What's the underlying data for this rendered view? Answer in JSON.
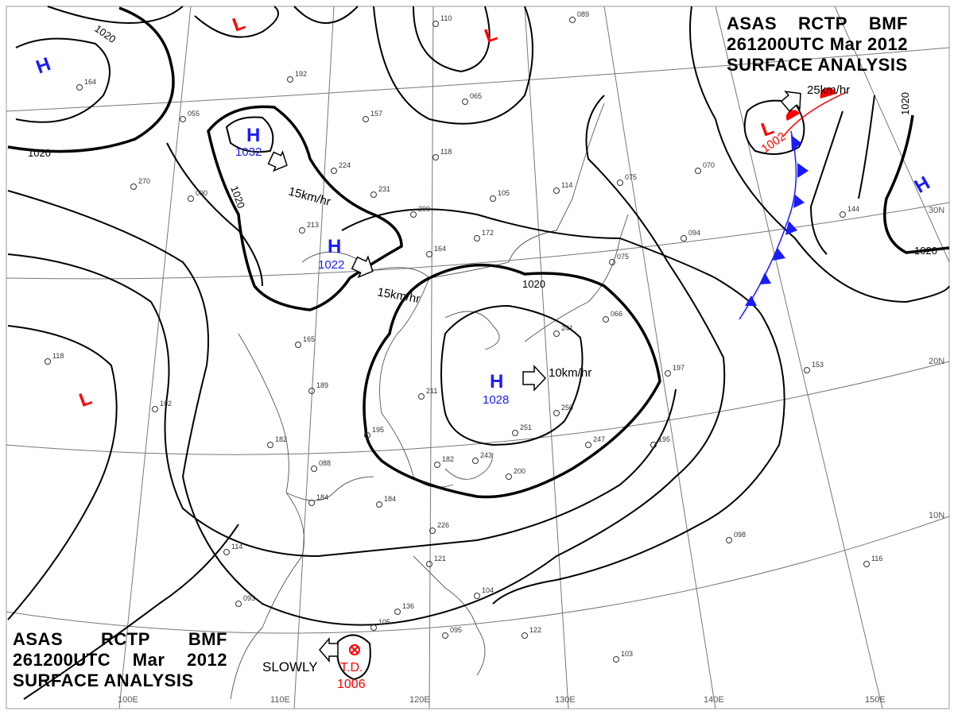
{
  "header": {
    "line1": [
      "ASAS",
      "RCTP",
      "BMF"
    ],
    "line2": [
      "261200UTC",
      "Mar",
      "2012"
    ],
    "line3": "SURFACE ANALYSIS"
  },
  "colors": {
    "high": "#1a1aff",
    "low": "#ff0000",
    "cold_front": "#1a1aff",
    "warm_front": "#ff0000",
    "isobar": "#000000"
  },
  "grid_labels": {
    "lon": [
      "100E",
      "110E",
      "120E",
      "130E",
      "140E",
      "150E"
    ],
    "lat": [
      "10N",
      "20N",
      "30N"
    ]
  },
  "pressure_centers": {
    "high_nw": {
      "symbol": "H"
    },
    "high_1032": {
      "symbol": "H",
      "value": "1032",
      "motion": "15km/hr"
    },
    "high_1022": {
      "symbol": "H",
      "value": "1022",
      "motion": "15km/hr"
    },
    "high_1028": {
      "symbol": "H",
      "value": "1028",
      "motion": "10km/hr"
    },
    "high_east": {
      "symbol": "H"
    },
    "low_top1": {
      "symbol": "L"
    },
    "low_top2": {
      "symbol": "L"
    },
    "low_west": {
      "symbol": "L"
    },
    "low_ne": {
      "symbol": "L",
      "value": "1002",
      "motion": "25km/hr"
    },
    "td": {
      "symbol": "T.D.",
      "value": "1006",
      "motion": "SLOWLY"
    }
  },
  "isobar_labels": [
    "1020",
    "1020",
    "1020",
    "1020",
    "1020",
    "1020",
    "1020"
  ],
  "stations": [
    "110",
    "089",
    "065",
    "157",
    "224",
    "213",
    "231",
    "200",
    "164",
    "172",
    "105",
    "118",
    "114",
    "075",
    "070",
    "144",
    "153",
    "197",
    "195",
    "250",
    "241",
    "251",
    "243",
    "247",
    "211",
    "195",
    "189",
    "184",
    "165",
    "182",
    "184",
    "182",
    "200",
    "226",
    "121",
    "104",
    "122",
    "095",
    "136",
    "105",
    "093",
    "114",
    "098",
    "103",
    "116",
    "102",
    "118",
    "094",
    "066",
    "075",
    "090",
    "192",
    "164",
    "270",
    "055",
    "088"
  ]
}
